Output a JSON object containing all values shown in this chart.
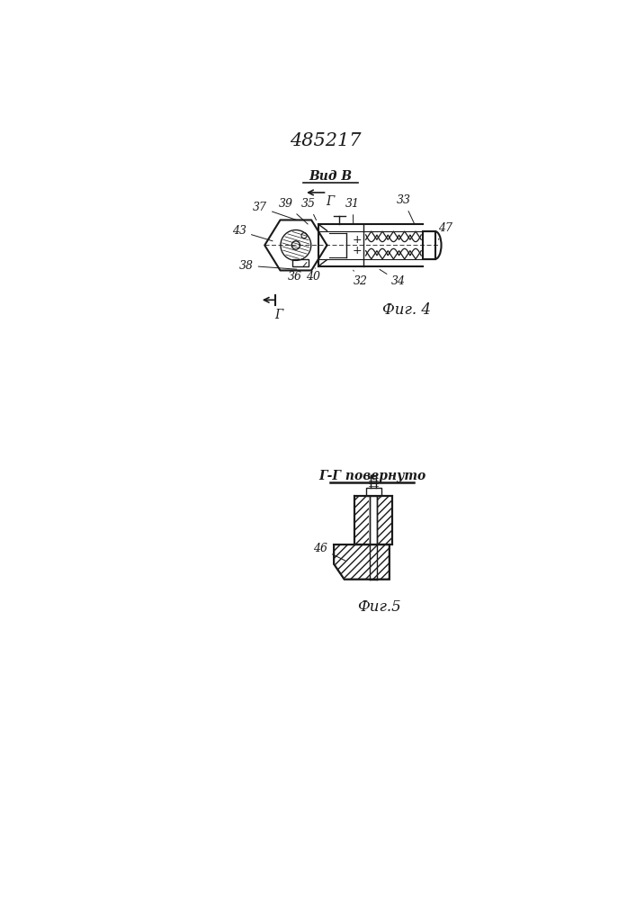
{
  "bg_color": "#ffffff",
  "patent_number": "485217",
  "fig4_label": "Фиг. 4",
  "fig5_label": "Фиг.5",
  "vid_B_label": "Вид В",
  "GG_label": "Г-Г повернуто",
  "G_label": "Г",
  "line_color": "#1a1a1a"
}
